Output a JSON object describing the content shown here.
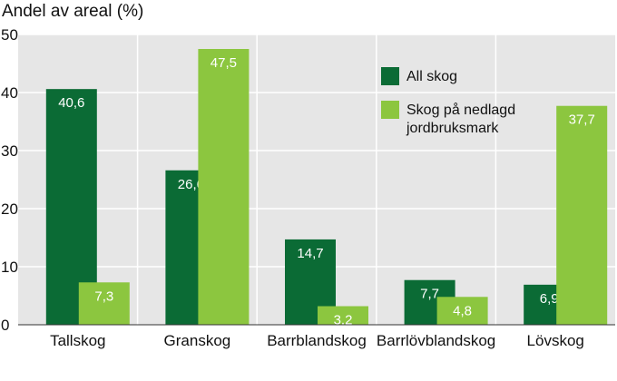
{
  "chart_data": {
    "type": "bar",
    "title": "",
    "xlabel": "",
    "ylabel": "Andel av areal (%)",
    "ylim": [
      0,
      50
    ],
    "yticks": [
      0,
      10,
      20,
      30,
      40,
      50
    ],
    "grid": true,
    "legend_position": "top-right",
    "categories": [
      "Tallskog",
      "Granskog",
      "Barrblandskog",
      "Barrlövblandskog",
      "Lövskog"
    ],
    "series": [
      {
        "name": "All skog",
        "color": "#0b6b35",
        "values": [
          40.6,
          26.6,
          14.7,
          7.7,
          6.9
        ],
        "labels": [
          "40,6",
          "26,6",
          "14,7",
          "7,7",
          "6,9"
        ]
      },
      {
        "name": "Skog på nedlagd jordbruksmark",
        "legend_lines": [
          "Skog på nedlagd",
          "jordbruksmark"
        ],
        "color": "#8cc63f",
        "values": [
          7.3,
          47.5,
          3.2,
          4.8,
          37.7
        ],
        "labels": [
          "7,3",
          "47,5",
          "3,2",
          "4,8",
          "37,7"
        ]
      }
    ]
  },
  "colors": {
    "plot_background": "#e6e6e6",
    "grid": "#ffffff"
  }
}
